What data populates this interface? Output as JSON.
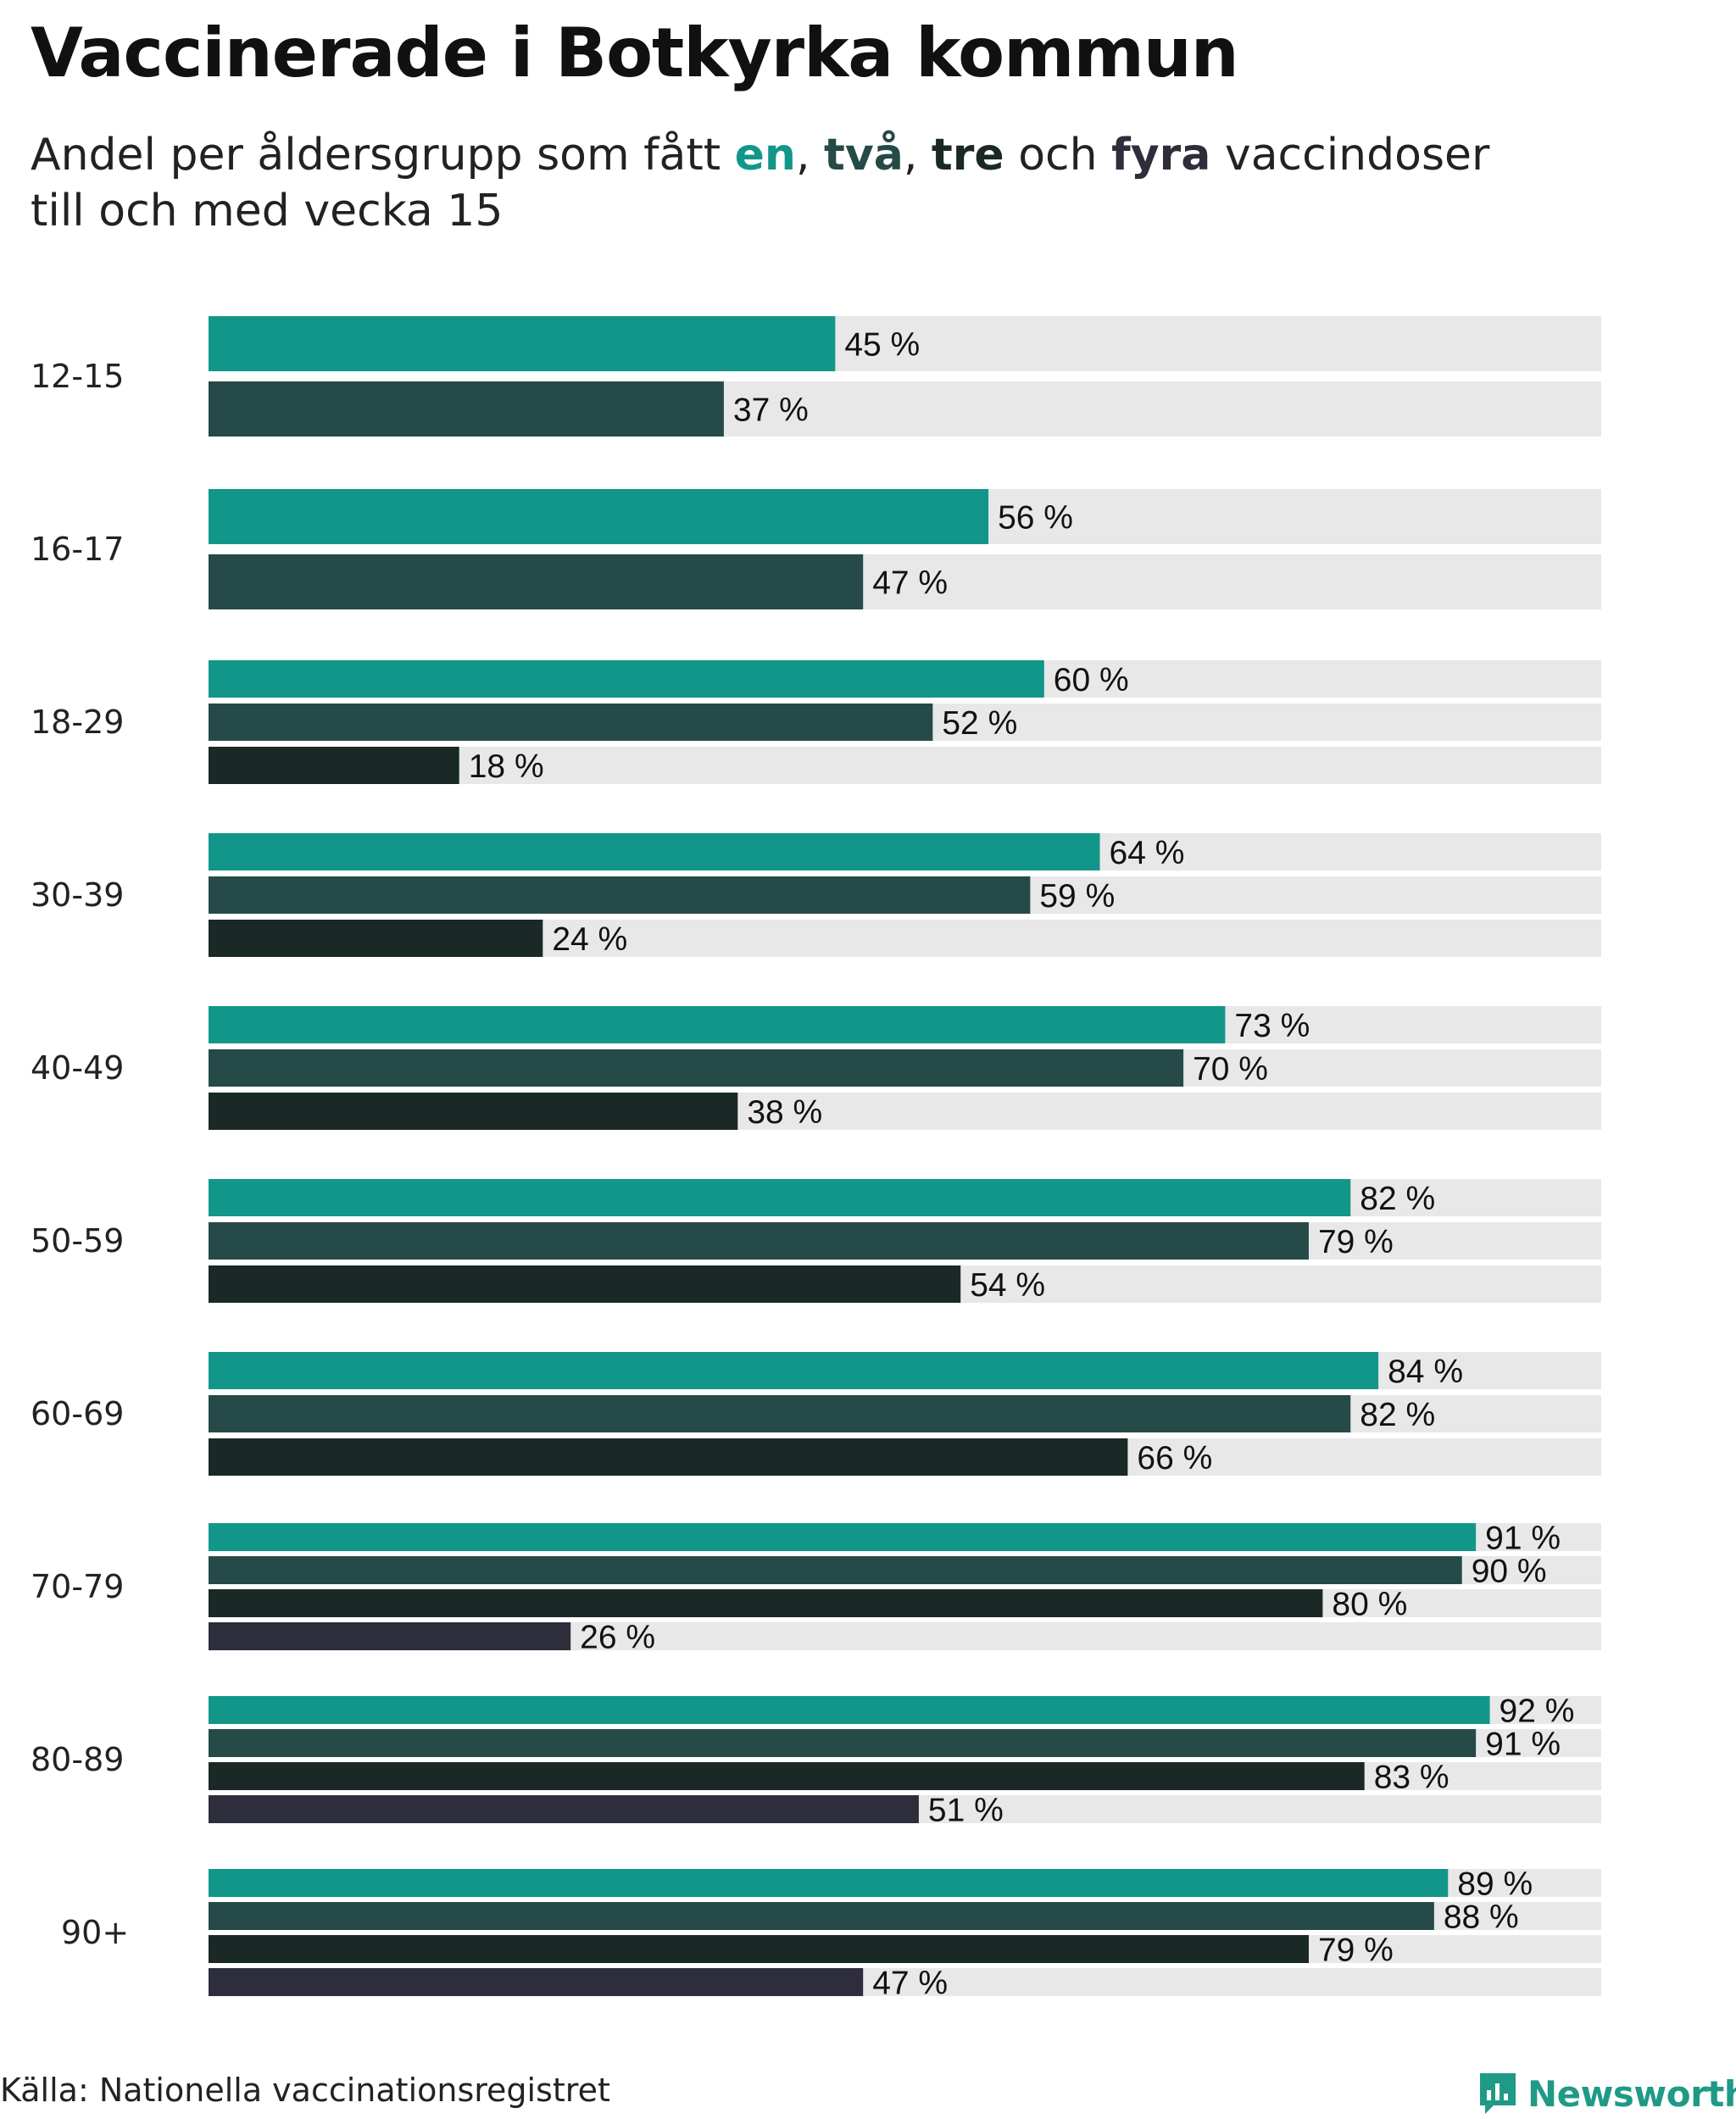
{
  "header": {
    "title": "Vaccinerade i Botkyrka kommun",
    "subtitle_prefix": "Andel per åldersgrupp som fått ",
    "dose_en": "en",
    "sep1": ", ",
    "dose_tva": "två",
    "sep2": ", ",
    "dose_tre": "tre",
    "sep3": " och ",
    "dose_fyra": "fyra",
    "subtitle_suffix": " vaccindoser",
    "subtitle_line2": "till och med vecka 15"
  },
  "footer": {
    "source": "Källa: Nationella vaccinationsregistret",
    "brand": "Newsworthy",
    "brand_icon": "newsworthy-logo-icon"
  },
  "colors": {
    "dose1": "#13968a",
    "dose2": "#264a47",
    "dose3": "#1a2826",
    "dose4": "#2e2d3b",
    "track": "#e8e8e8"
  },
  "chart_data": {
    "type": "bar",
    "orientation": "horizontal",
    "categories": [
      "12-15",
      "16-17",
      "18-29",
      "30-39",
      "40-49",
      "50-59",
      "60-69",
      "70-79",
      "80-89",
      "90+"
    ],
    "series": [
      {
        "name": "en",
        "values": [
          45,
          56,
          60,
          64,
          73,
          82,
          84,
          91,
          92,
          89
        ]
      },
      {
        "name": "två",
        "values": [
          37,
          47,
          52,
          59,
          70,
          79,
          82,
          90,
          91,
          88
        ]
      },
      {
        "name": "tre",
        "values": [
          null,
          null,
          18,
          24,
          38,
          54,
          66,
          80,
          83,
          79
        ]
      },
      {
        "name": "fyra",
        "values": [
          null,
          null,
          null,
          null,
          null,
          null,
          null,
          26,
          51,
          47
        ]
      }
    ],
    "value_suffix": " %",
    "xlim": [
      0,
      100
    ],
    "grid": false,
    "legend": "in subtitle"
  }
}
